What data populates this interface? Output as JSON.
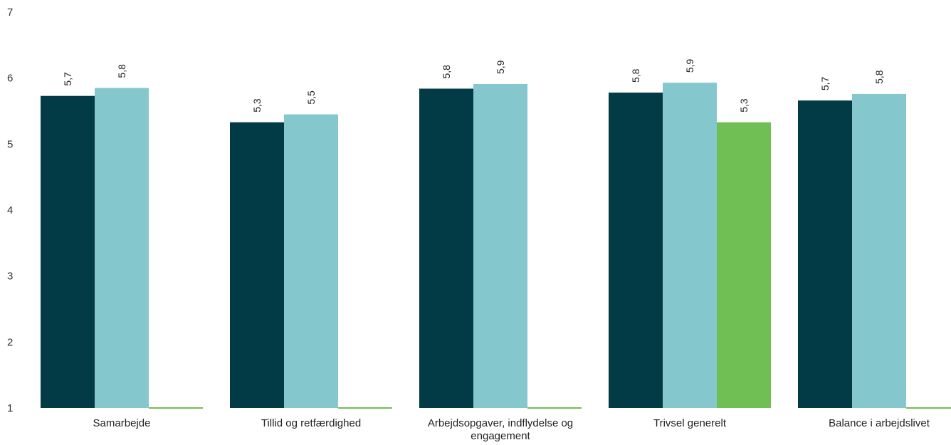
{
  "chart_data": {
    "type": "bar",
    "title": "",
    "xlabel": "",
    "ylabel": "",
    "ylim": [
      1,
      7
    ],
    "yticks": [
      1,
      2,
      3,
      4,
      5,
      6,
      7
    ],
    "ytick_labels": [
      "1",
      "2",
      "3",
      "4",
      "5",
      "6",
      "7"
    ],
    "grid": false,
    "legend": "none",
    "categories": [
      [
        "Samarbejde"
      ],
      [
        "Tillid og retfærdighed"
      ],
      [
        "Arbejdsopgaver, indflydelse og",
        "engagement"
      ],
      [
        "Trivsel generelt"
      ],
      [
        "Balance i arbejdslivet"
      ]
    ],
    "series": [
      {
        "color": "#023b45",
        "values": [
          5.73,
          5.33,
          5.84,
          5.78,
          5.66
        ],
        "labels": [
          "5,7",
          "5,3",
          "5,8",
          "5,8",
          "5,7"
        ]
      },
      {
        "color": "#84c8cd",
        "values": [
          5.85,
          5.45,
          5.91,
          5.93,
          5.76
        ],
        "labels": [
          "5,8",
          "5,5",
          "5,9",
          "5,9",
          "5,8"
        ]
      },
      {
        "color": "#70bf54",
        "values": [
          null,
          null,
          null,
          5.33,
          null
        ],
        "labels": [
          null,
          null,
          null,
          "5,3",
          null
        ]
      }
    ]
  }
}
